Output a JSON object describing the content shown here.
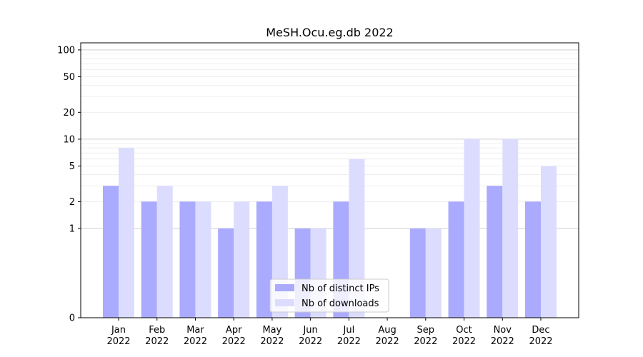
{
  "chart_data": {
    "type": "bar",
    "title": "MeSH.Ocu.eg.db 2022",
    "xlabel": "",
    "ylabel": "",
    "y_scale": "symlog",
    "y_ticks": [
      0,
      1,
      2,
      5,
      10,
      20,
      50,
      100
    ],
    "y_tick_labels": [
      "0",
      "1",
      "2",
      "5",
      "10",
      "20",
      "50",
      "100"
    ],
    "ylim": [
      0,
      120
    ],
    "grid": true,
    "legend_position": "bottom-center",
    "categories": [
      "Jan",
      "Feb",
      "Mar",
      "Apr",
      "May",
      "Jun",
      "Jul",
      "Aug",
      "Sep",
      "Oct",
      "Nov",
      "Dec"
    ],
    "category_sublabel": "2022",
    "series": [
      {
        "name": "Nb of distinct IPs",
        "color": "#aaaaff",
        "values": [
          3,
          2,
          2,
          1,
          2,
          1,
          2,
          0,
          1,
          2,
          3,
          2
        ]
      },
      {
        "name": "Nb of downloads",
        "color": "#dcdcff",
        "values": [
          8,
          3,
          2,
          2,
          3,
          1,
          6,
          0,
          1,
          10,
          10,
          5
        ]
      }
    ]
  }
}
